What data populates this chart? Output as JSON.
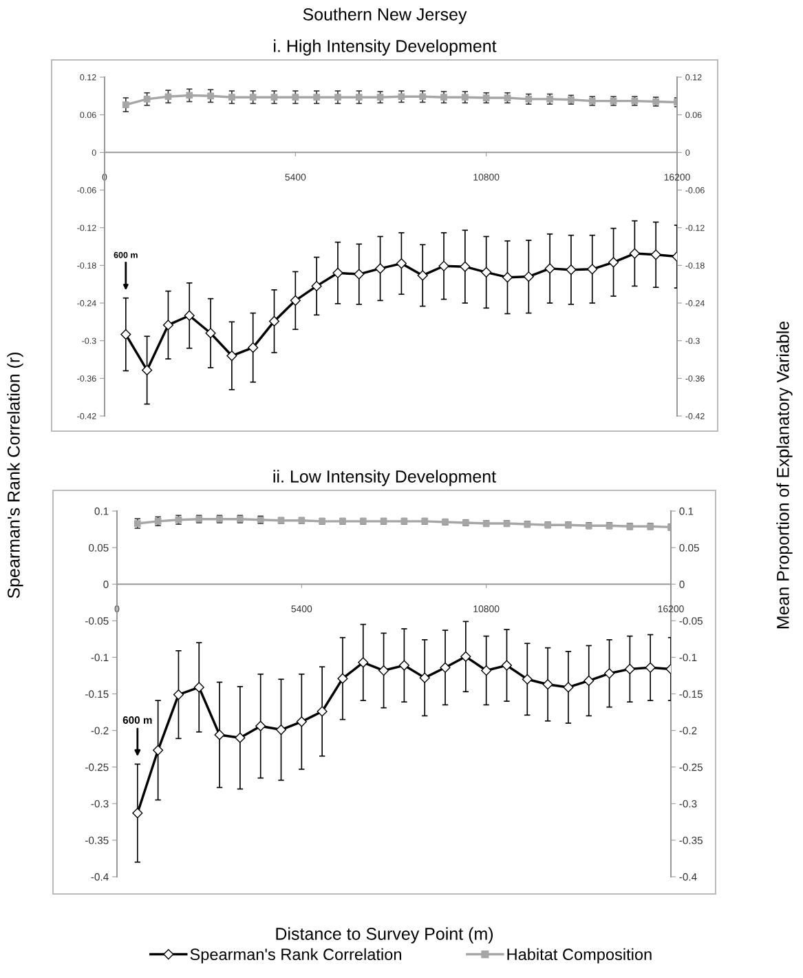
{
  "chart_data": [
    {
      "type": "line",
      "legend": "bottom",
      "title": "Southern New Jersey",
      "subtitle": "i. High Intensity Development",
      "ylabel": "Spearman's Rank Correlation (r)",
      "y2label": "Mean Proportion of Explanatory Variable",
      "x": [
        600,
        1200,
        1800,
        2400,
        3000,
        3600,
        4200,
        4800,
        5400,
        6000,
        6600,
        7200,
        7800,
        8400,
        9000,
        9600,
        10200,
        10800,
        11400,
        12000,
        12600,
        13200,
        13800,
        14400,
        15000,
        15600,
        16200
      ],
      "xlim": [
        0,
        16200
      ],
      "xticks": [
        0,
        5400,
        10800,
        16200
      ],
      "ylim": [
        -0.42,
        0.12
      ],
      "yticks": [
        0.12,
        0.06,
        0,
        -0.06,
        -0.12,
        -0.18,
        -0.24,
        -0.3,
        -0.36,
        -0.42
      ],
      "y2lim": [
        -0.42,
        0.12
      ],
      "y2ticks": [
        0.12,
        0.06,
        0,
        -0.06,
        -0.12,
        -0.18,
        -0.24,
        -0.3,
        -0.36,
        -0.42
      ],
      "series": [
        {
          "name": "Spearman's Rank Correlation",
          "color": "#000000",
          "marker": "diamond",
          "values": [
            -0.29,
            -0.347,
            -0.275,
            -0.26,
            -0.288,
            -0.324,
            -0.311,
            -0.269,
            -0.236,
            -0.213,
            -0.192,
            -0.194,
            -0.185,
            -0.177,
            -0.196,
            -0.181,
            -0.182,
            -0.191,
            -0.199,
            -0.198,
            -0.185,
            -0.187,
            -0.186,
            -0.175,
            -0.161,
            -0.163,
            -0.166
          ],
          "errors": [
            0.058,
            0.054,
            0.054,
            0.052,
            0.055,
            0.054,
            0.055,
            0.05,
            0.046,
            0.046,
            0.049,
            0.048,
            0.051,
            0.049,
            0.049,
            0.053,
            0.058,
            0.057,
            0.058,
            0.058,
            0.055,
            0.055,
            0.054,
            0.054,
            0.052,
            0.052,
            0.05
          ]
        },
        {
          "name": "Habitat Composition",
          "color": "#a6a6a6",
          "marker": "square",
          "axis": "y2",
          "values": [
            0.076,
            0.085,
            0.089,
            0.091,
            0.09,
            0.088,
            0.088,
            0.088,
            0.088,
            0.088,
            0.088,
            0.088,
            0.088,
            0.089,
            0.089,
            0.088,
            0.088,
            0.087,
            0.087,
            0.085,
            0.085,
            0.084,
            0.082,
            0.082,
            0.082,
            0.081,
            0.08
          ],
          "errors": [
            0.011,
            0.01,
            0.01,
            0.01,
            0.01,
            0.01,
            0.01,
            0.01,
            0.01,
            0.01,
            0.01,
            0.01,
            0.009,
            0.009,
            0.009,
            0.009,
            0.009,
            0.008,
            0.008,
            0.008,
            0.008,
            0.007,
            0.007,
            0.007,
            0.007,
            0.007,
            0.007
          ]
        }
      ],
      "annotations": [
        "600 m"
      ]
    },
    {
      "type": "line",
      "title": "ii. Low Intensity Development",
      "xlabel": "Distance to Survey Point (m)",
      "x": [
        600,
        1200,
        1800,
        2400,
        3000,
        3600,
        4200,
        4800,
        5400,
        6000,
        6600,
        7200,
        7800,
        8400,
        9000,
        9600,
        10200,
        10800,
        11400,
        12000,
        12600,
        13200,
        13800,
        14400,
        15000,
        15600,
        16200
      ],
      "xlim": [
        0,
        16200
      ],
      "xticks": [
        0,
        5400,
        10800,
        16200
      ],
      "ylim": [
        -0.4,
        0.1
      ],
      "yticks": [
        0.1,
        0.05,
        0,
        -0.05,
        -0.1,
        -0.15,
        -0.2,
        -0.25,
        -0.3,
        -0.35,
        -0.4
      ],
      "y2lim": [
        -0.4,
        0.1
      ],
      "y2ticks": [
        0.1,
        0.05,
        0,
        -0.05,
        -0.1,
        -0.15,
        -0.2,
        -0.25,
        -0.3,
        -0.35,
        -0.4
      ],
      "series": [
        {
          "color": "#000000",
          "marker": "diamond",
          "values": [
            -0.313,
            -0.227,
            -0.151,
            -0.141,
            -0.206,
            -0.21,
            -0.194,
            -0.199,
            -0.188,
            -0.174,
            -0.129,
            -0.107,
            -0.118,
            -0.111,
            -0.128,
            -0.114,
            -0.099,
            -0.118,
            -0.111,
            -0.13,
            -0.137,
            -0.141,
            -0.132,
            -0.122,
            -0.116,
            -0.114,
            -0.116
          ],
          "errors": [
            0.067,
            0.068,
            0.06,
            0.061,
            0.072,
            0.07,
            0.071,
            0.069,
            0.065,
            0.061,
            0.056,
            0.052,
            0.051,
            0.05,
            0.052,
            0.051,
            0.048,
            0.047,
            0.049,
            0.049,
            0.05,
            0.049,
            0.048,
            0.046,
            0.045,
            0.045,
            0.043
          ]
        },
        {
          "color": "#a6a6a6",
          "marker": "square",
          "axis": "y2",
          "values": [
            0.083,
            0.086,
            0.088,
            0.089,
            0.089,
            0.089,
            0.088,
            0.087,
            0.087,
            0.086,
            0.086,
            0.086,
            0.086,
            0.086,
            0.086,
            0.085,
            0.084,
            0.083,
            0.083,
            0.082,
            0.081,
            0.081,
            0.08,
            0.08,
            0.079,
            0.079,
            0.078
          ],
          "errors": [
            0.0065,
            0.006,
            0.006,
            0.005,
            0.005,
            0.005,
            0.005,
            0.004,
            0.004,
            0.004,
            0.004,
            0.004,
            0.004,
            0.004,
            0.004,
            0.004,
            0.004,
            0.004,
            0.004,
            0.004,
            0.004,
            0.004,
            0.004,
            0.004,
            0.004,
            0.004,
            0.004
          ]
        }
      ],
      "annotations": [
        "600 m"
      ]
    }
  ]
}
